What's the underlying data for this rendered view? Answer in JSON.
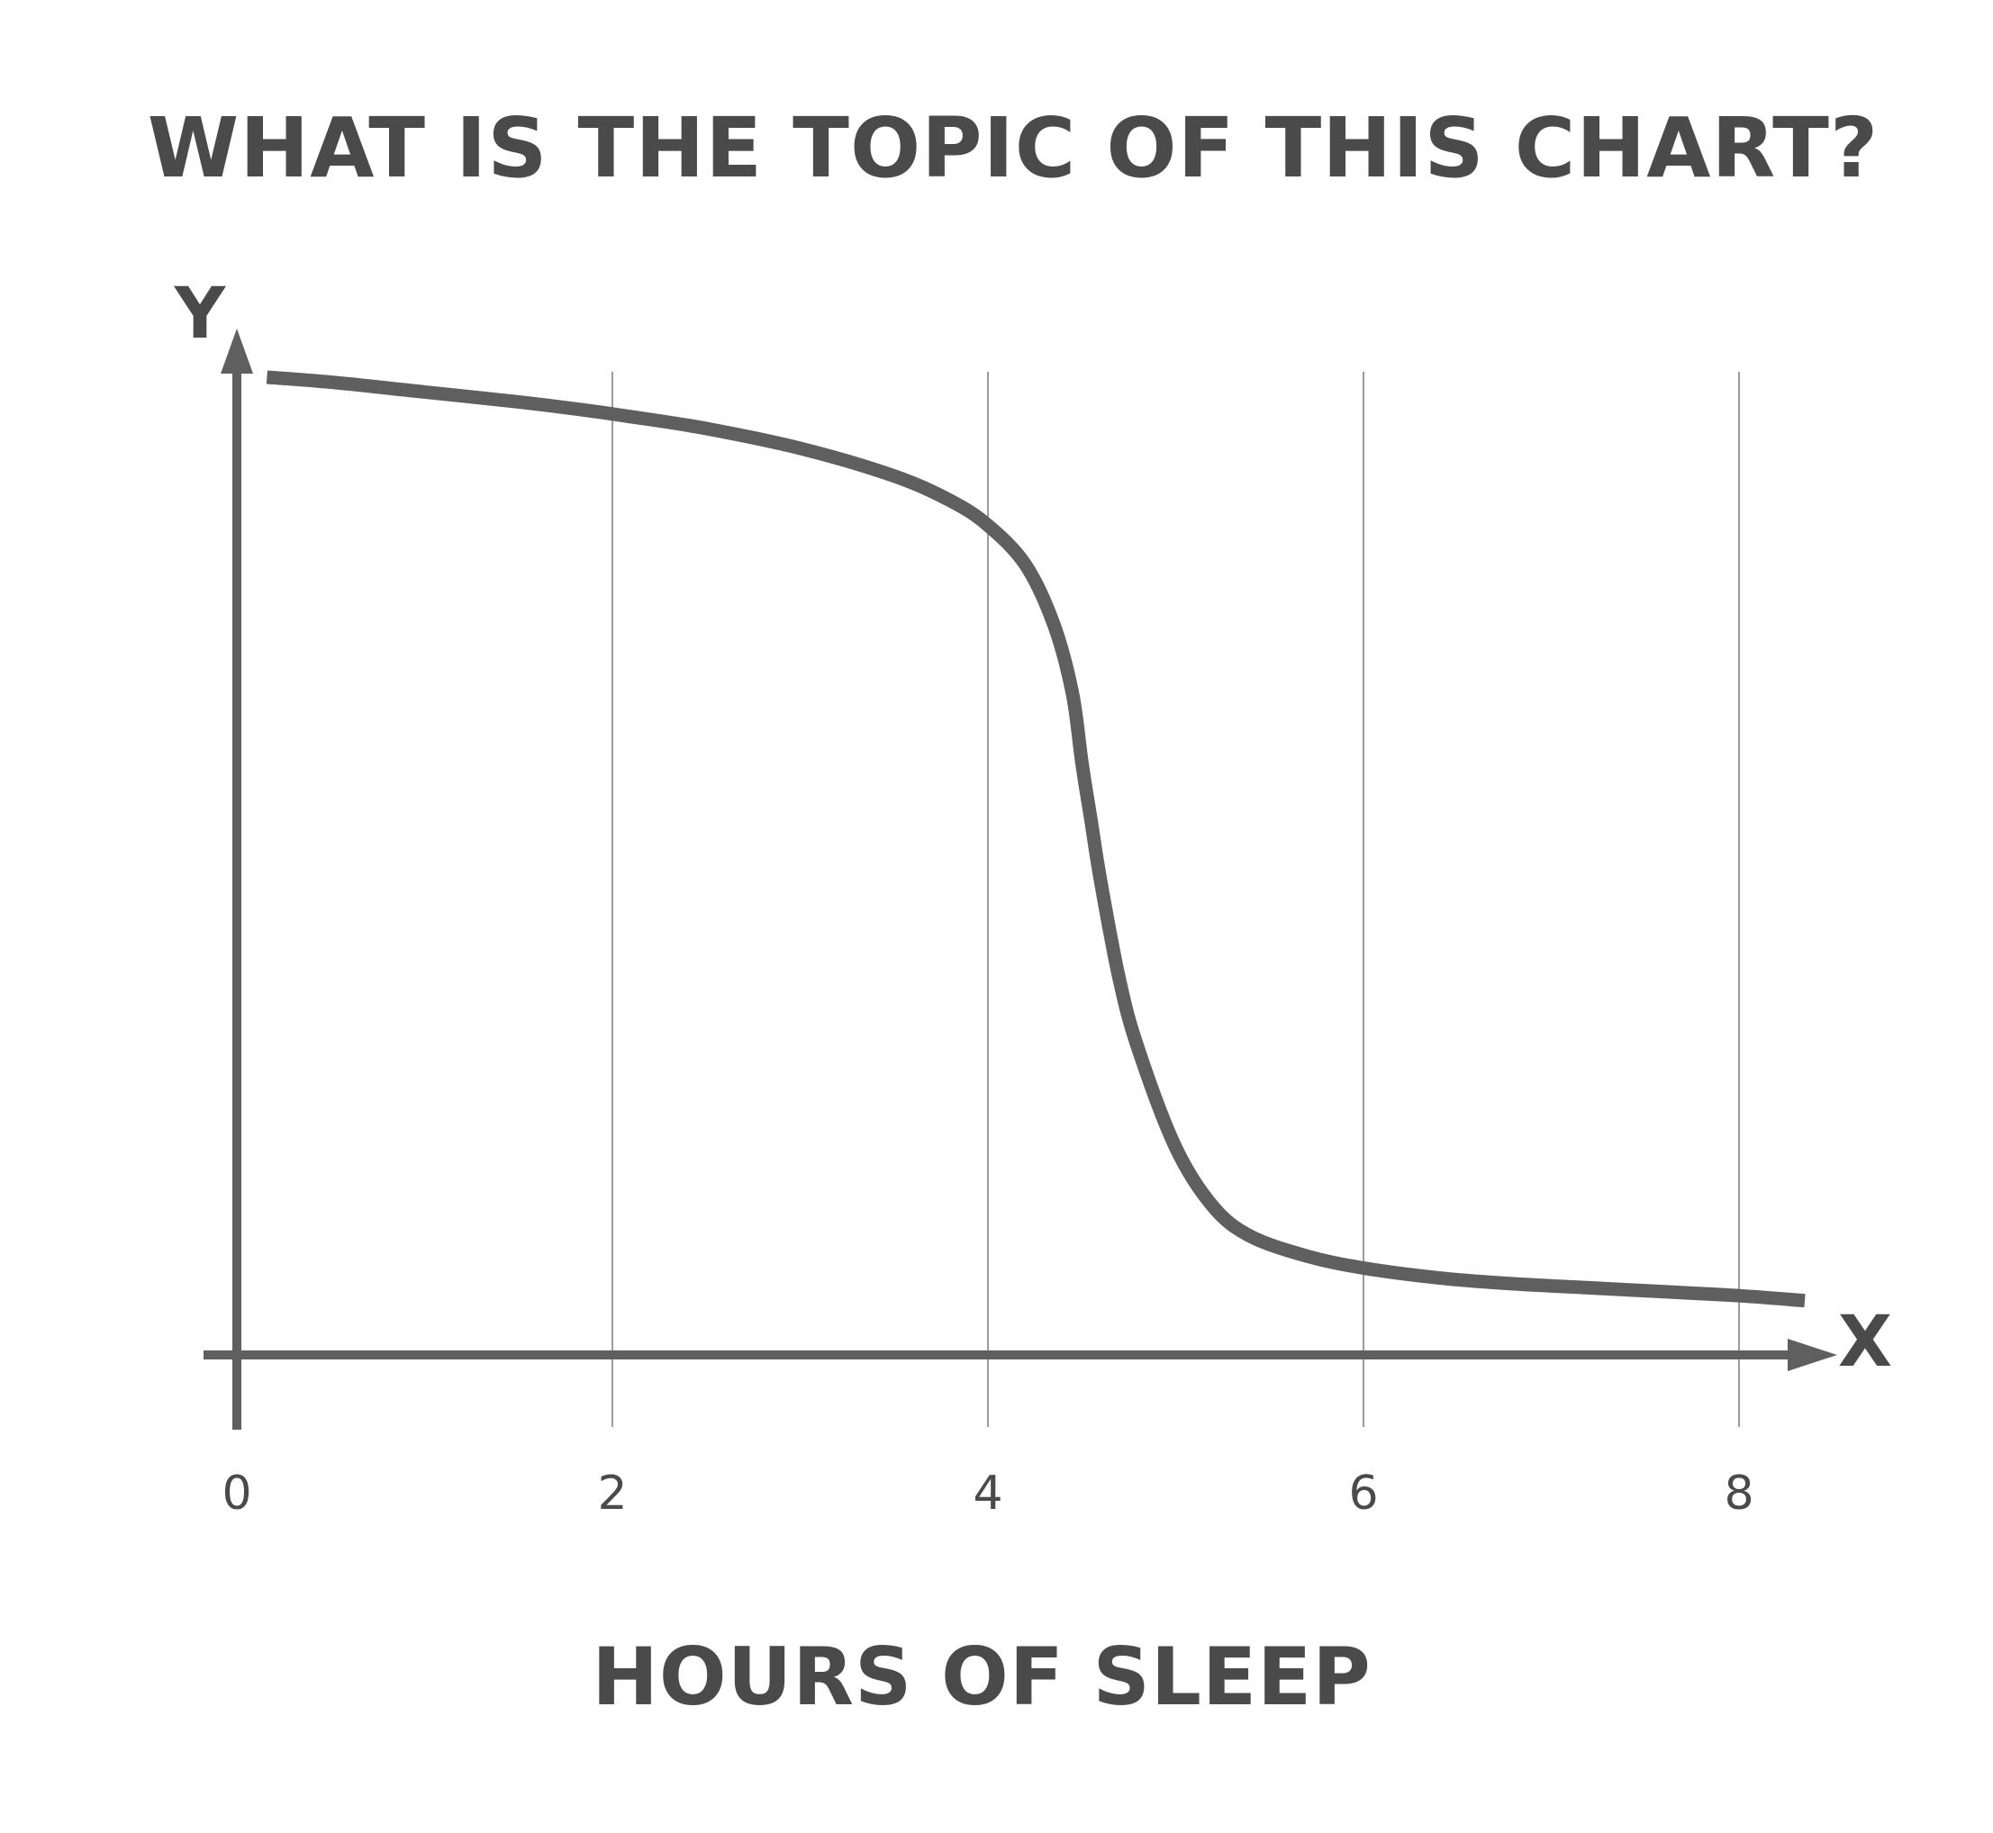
{
  "chart_data": {
    "type": "line",
    "title": "WHAT IS THE TOPIC OF THIS CHART?",
    "xlabel": "HOURS OF SLEEP",
    "ylabel": "",
    "x_axis_letter": "X",
    "y_axis_letter": "Y",
    "xlim": [
      0,
      8.35
    ],
    "ylim": [
      0,
      1.0
    ],
    "xticks": [
      0,
      2,
      4,
      6,
      8
    ],
    "xtick_labels": [
      "0",
      "2",
      "4",
      "6",
      "8"
    ],
    "yticks": [],
    "grid": "vertical at x ticks",
    "legend": "none",
    "colors": {
      "line": "#5f5f5f",
      "axes": "#5f5f5f",
      "text": "#4a4a4a",
      "grid": "#7a7a7a"
    },
    "series": [
      {
        "x": [
          0.16,
          0.5,
          1.0,
          1.5,
          1.8,
          2.1,
          2.5,
          3.0,
          3.5,
          3.8,
          4.0,
          4.2,
          4.35,
          4.45,
          4.5,
          4.55,
          4.6,
          4.7,
          4.8,
          5.0,
          5.2,
          5.4,
          5.7,
          6.0,
          6.4,
          6.8,
          7.2,
          7.6,
          8.0,
          8.35
        ],
        "y": [
          0.99,
          0.985,
          0.975,
          0.965,
          0.958,
          0.95,
          0.938,
          0.918,
          0.89,
          0.865,
          0.84,
          0.8,
          0.74,
          0.67,
          0.6,
          0.54,
          0.48,
          0.38,
          0.31,
          0.21,
          0.15,
          0.12,
          0.1,
          0.088,
          0.078,
          0.072,
          0.068,
          0.064,
          0.06,
          0.055
        ]
      }
    ]
  }
}
